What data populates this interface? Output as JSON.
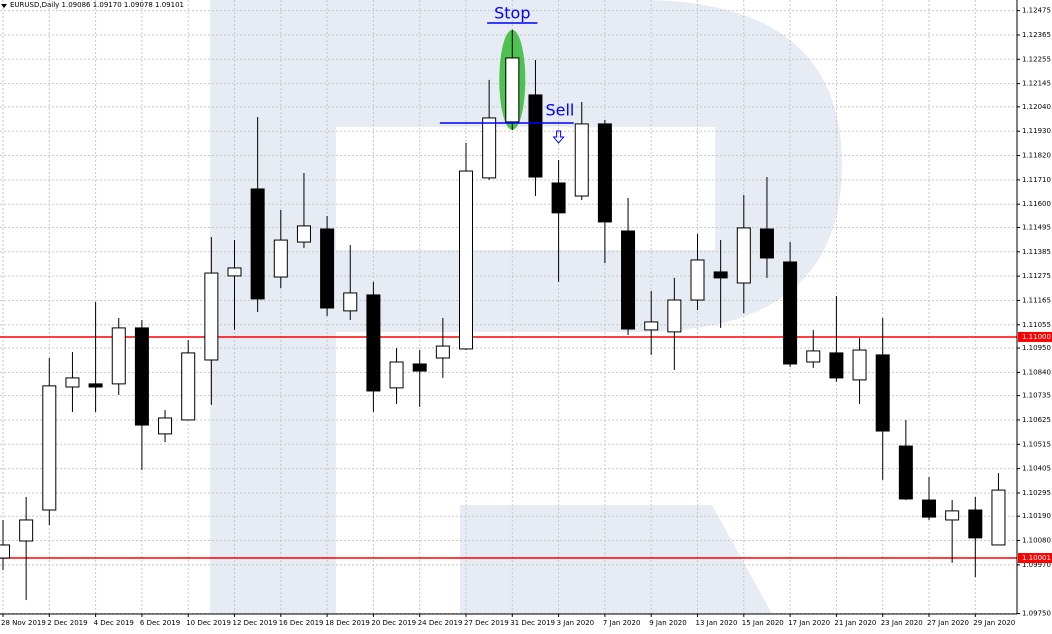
{
  "chart_data": {
    "type": "candlestick",
    "title": "EURUSD,Daily  1.09086 1.09170 1.09078 1.09101",
    "categories": [
      "28 Nov 2019",
      null,
      "2 Dec 2019",
      null,
      "4 Dec 2019",
      null,
      "6 Dec 2019",
      null,
      "10 Dec 2019",
      null,
      "12 Dec 2019",
      null,
      "16 Dec 2019",
      null,
      "18 Dec 2019",
      null,
      "20 Dec 2019",
      null,
      "24 Dec 2019",
      null,
      "27 Dec 2019",
      null,
      "31 Dec 2019",
      null,
      "3 Jan 2020",
      null,
      "7 Jan 2020",
      null,
      "9 Jan 2020",
      null,
      "13 Jan 2020",
      null,
      "15 Jan 2020",
      null,
      "17 Jan 2020",
      null,
      "21 Jan 2020",
      null,
      "23 Jan 2020",
      null,
      "27 Jan 2020",
      null,
      "29 Jan 2020",
      null
    ],
    "open": [
      1.10001,
      1.10078,
      1.10218,
      1.10774,
      1.10788,
      1.10788,
      1.11041,
      1.10562,
      1.10625,
      1.10896,
      1.11276,
      1.11669,
      1.11271,
      1.11429,
      1.11488,
      1.11118,
      1.1119,
      1.1077,
      1.10878,
      1.10905,
      1.10946,
      1.11719,
      1.11972,
      1.12094,
      1.11696,
      1.11637,
      1.11963,
      1.11479,
      1.11032,
      1.11023,
      1.11167,
      1.11294,
      1.11244,
      1.11488,
      1.11339,
      1.10887,
      1.10928,
      1.10806,
      1.10919,
      1.10507,
      1.10263,
      1.10173,
      1.10218,
      1.1006
    ],
    "high": [
      1.10173,
      1.10277,
      1.10905,
      1.10932,
      1.11158,
      1.11086,
      1.11077,
      1.1067,
      1.10986,
      1.11452,
      1.11438,
      1.11994,
      1.11574,
      1.11741,
      1.11547,
      1.11416,
      1.11249,
      1.1095,
      1.10941,
      1.11086,
      1.11877,
      1.12162,
      1.12388,
      1.12252,
      1.118,
      1.12062,
      1.11981,
      1.11628,
      1.11208,
      1.11267,
      1.11466,
      1.11438,
      1.11642,
      1.11723,
      1.11429,
      1.11032,
      1.11185,
      1.10995,
      1.11086,
      1.10625,
      1.10367,
      1.10263,
      1.10277,
      1.10385
    ],
    "low": [
      1.09947,
      1.09811,
      1.1015,
      1.10661,
      1.10661,
      1.10738,
      1.10399,
      1.10525,
      1.10625,
      1.10693,
      1.11032,
      1.11113,
      1.11221,
      1.11402,
      1.11095,
      1.11077,
      1.10661,
      1.10697,
      1.10684,
      1.10815,
      1.10941,
      1.1171,
      1.11936,
      1.11637,
      1.11249,
      1.11619,
      1.11334,
      1.11009,
      1.10919,
      1.10851,
      1.11122,
      1.11041,
      1.11108,
      1.11267,
      1.10864,
      1.1086,
      1.10797,
      1.10697,
      1.10354,
      1.10263,
      1.10173,
      1.09979,
      1.09915,
      1.1006
    ],
    "close": [
      1.1006,
      1.10173,
      1.10779,
      1.10815,
      1.10774,
      1.11041,
      1.10602,
      1.10634,
      1.10928,
      1.11289,
      1.11312,
      1.11172,
      1.11438,
      1.11502,
      1.11131,
      1.11199,
      1.10756,
      1.10887,
      1.10846,
      1.10959,
      1.1175,
      1.1199,
      1.12261,
      1.11723,
      1.11561,
      1.11963,
      1.1152,
      1.11036,
      1.11068,
      1.11167,
      1.11348,
      1.11267,
      1.11493,
      1.11357,
      1.10878,
      1.10937,
      1.10815,
      1.10941,
      1.10575,
      1.10268,
      1.10186,
      1.10214,
      1.10092,
      1.10308
    ],
    "up_color": "#ffffff",
    "down_color": "#000000",
    "ylim": [
      1.09748,
      1.12523
    ],
    "yticks": [
      1.12475,
      1.12365,
      1.12255,
      1.12145,
      {
        "value": 1.1204,
        "label": "1.12040"
      },
      {
        "value": 1.1193,
        "label": "1.11930"
      },
      {
        "value": 1.1182,
        "label": "1.11820"
      },
      {
        "value": 1.1171,
        "label": "1.11710"
      },
      {
        "value": 1.116,
        "label": "1.11600"
      },
      1.11495,
      1.11385,
      1.11275,
      1.11165,
      1.11055,
      {
        "value": 1.1095,
        "label": "1.10950"
      },
      {
        "value": 1.1084,
        "label": "1.10840"
      },
      1.10735,
      1.10625,
      1.10515,
      1.10405,
      1.10295,
      {
        "value": 1.1019,
        "label": "1.10190"
      },
      {
        "value": 1.1008,
        "label": "1.10080"
      },
      {
        "value": 1.0997,
        "label": "1.09970"
      },
      {
        "value": 1.0975,
        "label": "1.09750"
      }
    ],
    "grid": true,
    "levels": [
      {
        "value": 1.11,
        "label": "1.11000",
        "color": "#ff0000"
      },
      {
        "value": 1.10001,
        "label": "1.10001",
        "color": "#ff0000"
      }
    ],
    "annotations": [
      {
        "text": "Stop",
        "value": 1.12419,
        "color": "#0000ff"
      },
      {
        "text": "Sell",
        "value": 1.11967,
        "color": "#0000ff"
      }
    ]
  }
}
